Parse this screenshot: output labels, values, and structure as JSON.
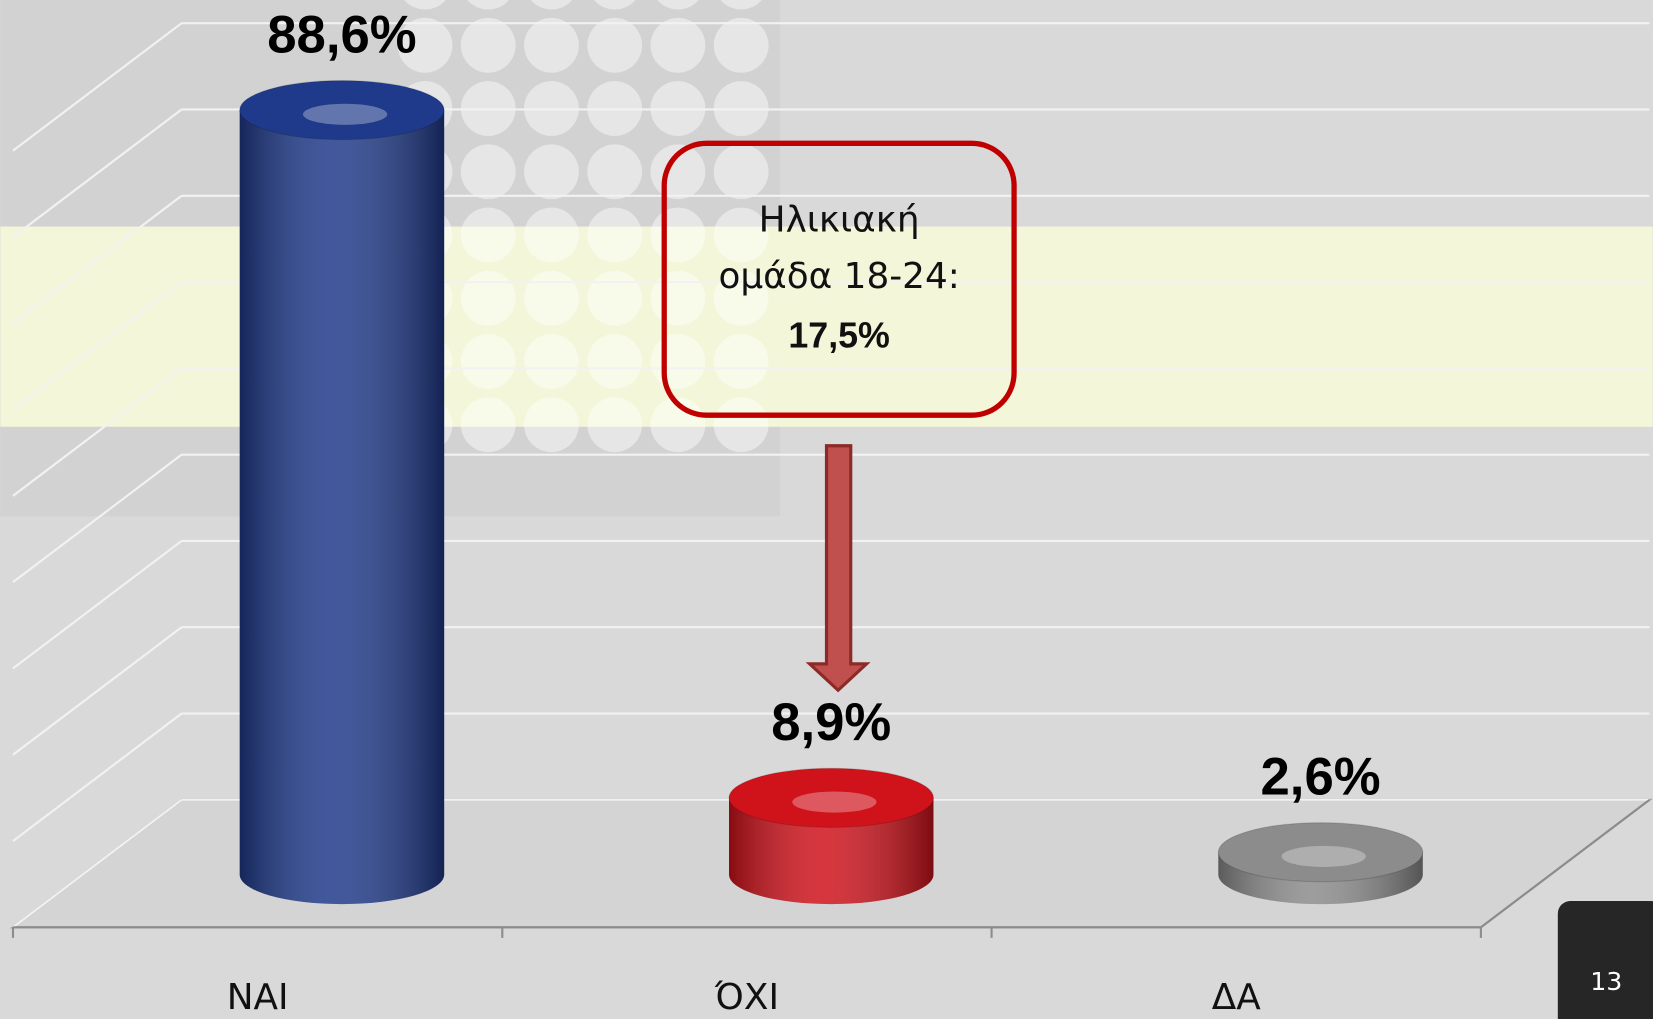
{
  "chart_data": {
    "type": "bar",
    "categories": [
      "ΝΑΙ",
      "ΌΧΙ",
      "ΔΑ"
    ],
    "values": [
      88.6,
      8.9,
      2.6
    ],
    "value_labels": [
      "88,6%",
      "8,9%",
      "2,6%"
    ],
    "colors": [
      "#1f3a8a",
      "#d0121b",
      "#8c8c8c"
    ],
    "ylim": [
      0,
      90
    ],
    "yticks": [
      0,
      10,
      20,
      30,
      40,
      50,
      60,
      70,
      80,
      90
    ],
    "grid": true,
    "annotation": {
      "lines": [
        "Ηλικιακή",
        "ομάδα 18-24:"
      ],
      "label": "17,5%"
    }
  },
  "page_number": "13"
}
